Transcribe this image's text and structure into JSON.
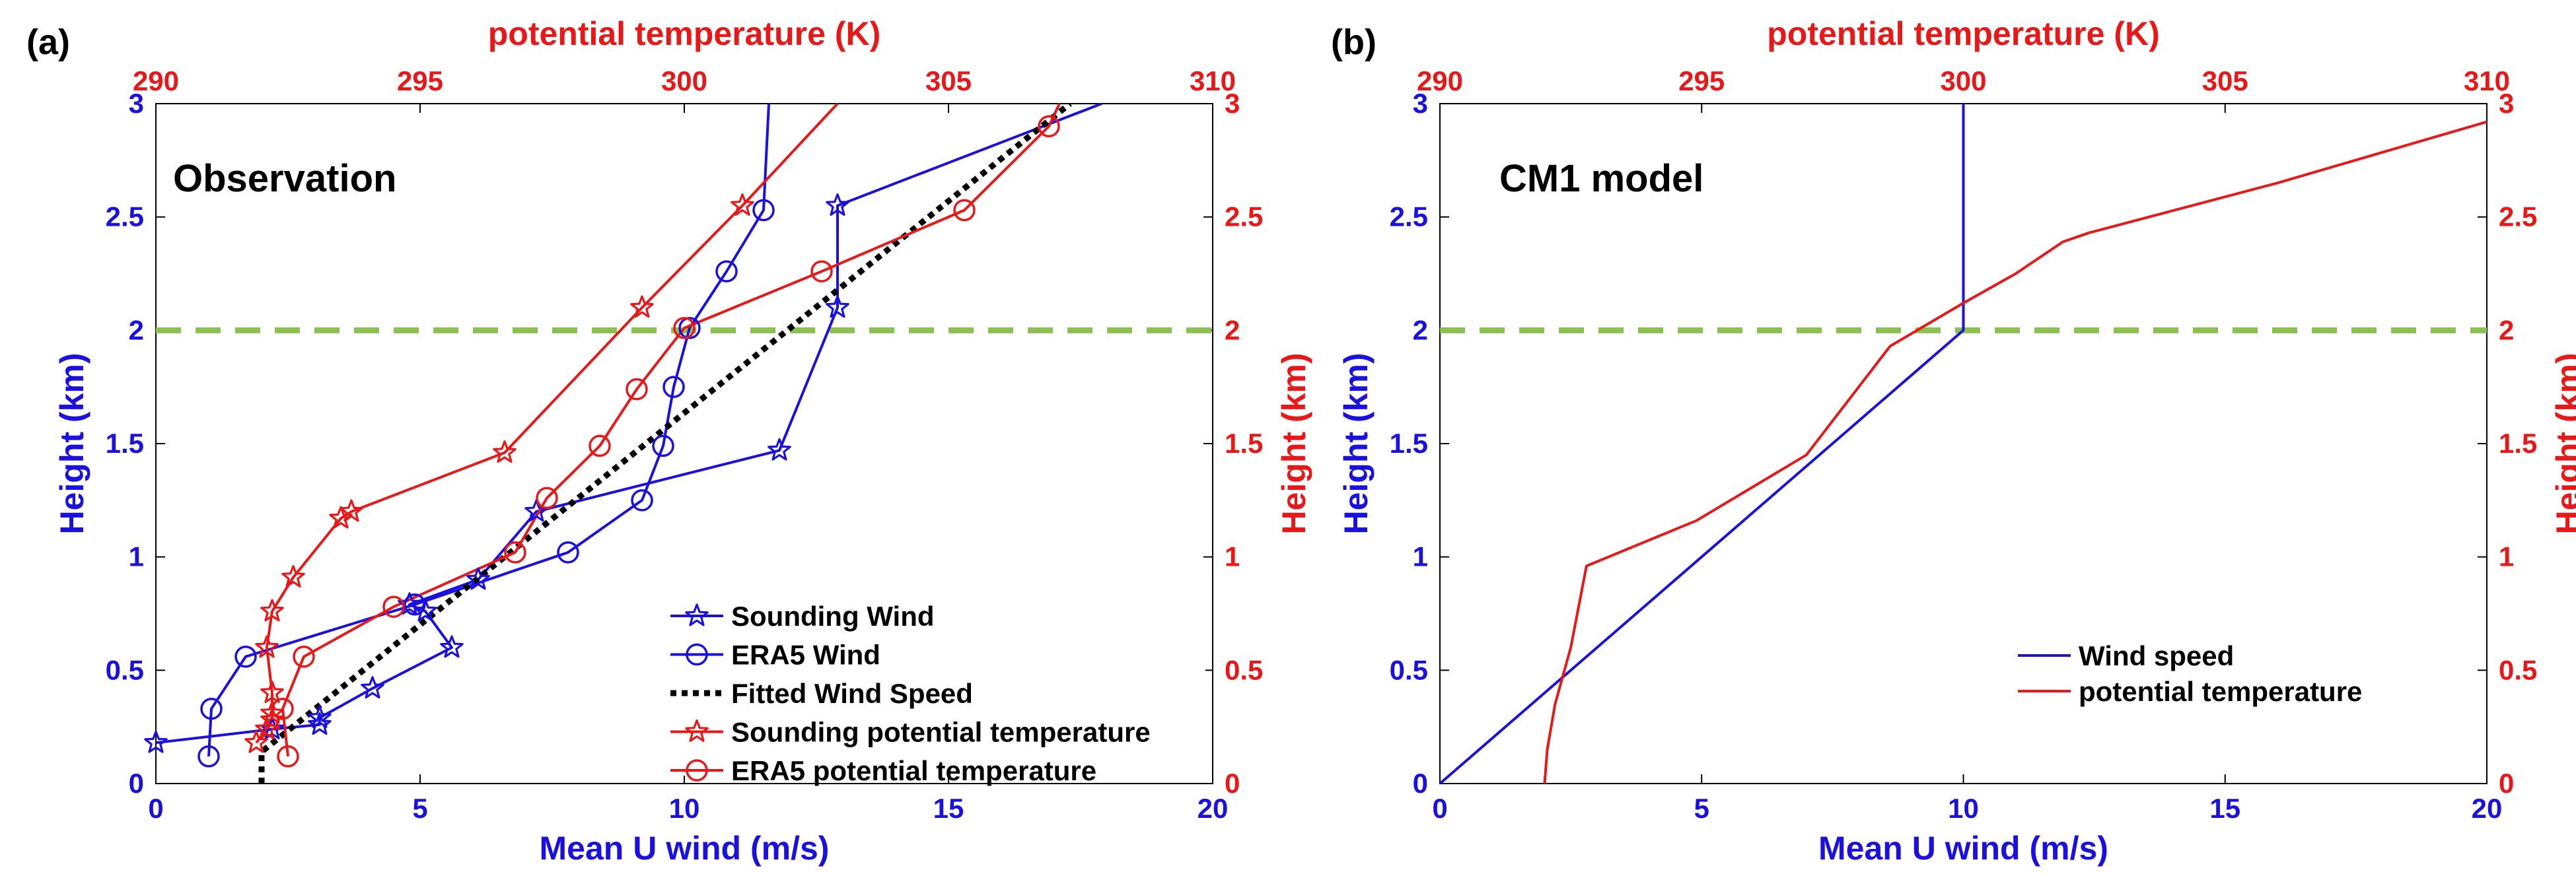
{
  "chart_data": [
    {
      "type": "line",
      "panel_label": "(a)",
      "title": "Observation",
      "xlabel": "Mean U wind (m/s)",
      "x2label": "potential temperature (K)",
      "ylabel": "Height (km)",
      "y2label": "Height (km)",
      "xlim": [
        0,
        20
      ],
      "x2lim": [
        290,
        310
      ],
      "ylim": [
        0,
        3
      ],
      "x_ticks": [
        "0",
        "5",
        "10",
        "15",
        "20"
      ],
      "x2_ticks": [
        "290",
        "295",
        "300",
        "305",
        "310"
      ],
      "y_ticks": [
        "0",
        "0.5",
        "1",
        "1.5",
        "2",
        "2.5",
        "3"
      ],
      "reference_line": {
        "y": 2,
        "color": "#8cc152",
        "style": "dashed"
      },
      "series": [
        {
          "name": "Sounding Wind",
          "axis": "bottom",
          "color": "#1a10e0",
          "marker": "star",
          "linestyle": "solid",
          "points": [
            [
              0,
              0.18
            ],
            [
              2.2,
              0.24
            ],
            [
              3.1,
              0.26
            ],
            [
              3.1,
              0.29
            ],
            [
              4.1,
              0.42
            ],
            [
              5.6,
              0.6
            ],
            [
              5.1,
              0.76
            ],
            [
              4.8,
              0.79
            ],
            [
              6.1,
              0.9
            ],
            [
              7.2,
              1.2
            ],
            [
              11.8,
              1.47
            ],
            [
              12.9,
              2.1
            ],
            [
              12.9,
              2.55
            ],
            [
              17.9,
              3.0
            ]
          ]
        },
        {
          "name": "ERA5 Wind",
          "axis": "bottom",
          "color": "#1a10e0",
          "marker": "circle",
          "linestyle": "solid",
          "points": [
            [
              1.0,
              0.12
            ],
            [
              1.05,
              0.33
            ],
            [
              1.7,
              0.56
            ],
            [
              4.9,
              0.79
            ],
            [
              7.8,
              1.02
            ],
            [
              9.2,
              1.25
            ],
            [
              9.6,
              1.49
            ],
            [
              9.8,
              1.75
            ],
            [
              10.1,
              2.01
            ],
            [
              10.8,
              2.26
            ],
            [
              11.5,
              2.53
            ],
            [
              11.6,
              3.0
            ]
          ]
        },
        {
          "name": "Fitted Wind Speed",
          "axis": "bottom",
          "color": "#000000",
          "marker": "none",
          "linestyle": "dotted",
          "points": [
            [
              2.0,
              0.0
            ],
            [
              2.0,
              0.14
            ],
            [
              17.3,
              3.0
            ]
          ]
        },
        {
          "name": "Sounding potential temperature",
          "axis": "top",
          "color": "#e81818",
          "marker": "star",
          "linestyle": "solid",
          "points": [
            [
              291.9,
              0.18
            ],
            [
              292.1,
              0.24
            ],
            [
              292.2,
              0.28
            ],
            [
              292.2,
              0.31
            ],
            [
              292.2,
              0.4
            ],
            [
              292.1,
              0.6
            ],
            [
              292.2,
              0.76
            ],
            [
              292.6,
              0.91
            ],
            [
              293.5,
              1.17
            ],
            [
              293.7,
              1.2
            ],
            [
              296.6,
              1.46
            ],
            [
              299.2,
              2.1
            ],
            [
              301.1,
              2.55
            ],
            [
              302.9,
              3.0
            ]
          ]
        },
        {
          "name": "ERA5 potential temperature",
          "axis": "top",
          "color": "#e81818",
          "marker": "circle",
          "linestyle": "solid",
          "points": [
            [
              292.5,
              0.12
            ],
            [
              292.4,
              0.33
            ],
            [
              292.8,
              0.56
            ],
            [
              294.5,
              0.78
            ],
            [
              296.8,
              1.02
            ],
            [
              297.4,
              1.26
            ],
            [
              298.4,
              1.49
            ],
            [
              299.1,
              1.74
            ],
            [
              300.0,
              2.01
            ],
            [
              302.6,
              2.26
            ],
            [
              305.3,
              2.53
            ],
            [
              306.9,
              2.9
            ],
            [
              307.1,
              3.0
            ]
          ]
        }
      ],
      "legend": {
        "position": "bottom-right",
        "entries": [
          "Sounding Wind",
          "ERA5 Wind",
          "Fitted Wind Speed",
          "Sounding potential temperature",
          "ERA5 potential temperature"
        ]
      }
    },
    {
      "type": "line",
      "panel_label": "(b)",
      "title": "CM1 model",
      "xlabel": "Mean U wind (m/s)",
      "x2label": "potential temperature (K)",
      "ylabel": "Height (km)",
      "y2label": "Height (km)",
      "xlim": [
        0,
        20
      ],
      "x2lim": [
        290,
        310
      ],
      "ylim": [
        0,
        3
      ],
      "x_ticks": [
        "0",
        "5",
        "10",
        "15",
        "20"
      ],
      "x2_ticks": [
        "290",
        "295",
        "300",
        "305",
        "310"
      ],
      "y_ticks": [
        "0",
        "0.5",
        "1",
        "1.5",
        "2",
        "2.5",
        "3"
      ],
      "reference_line": {
        "y": 2,
        "color": "#8cc152",
        "style": "dashed"
      },
      "series": [
        {
          "name": "Wind speed",
          "axis": "bottom",
          "color": "#1a10e0",
          "marker": "none",
          "linestyle": "solid",
          "points": [
            [
              0,
              0
            ],
            [
              10,
              2.0
            ],
            [
              10,
              3.0
            ]
          ]
        },
        {
          "name": "potential temperature",
          "axis": "top",
          "color": "#e81818",
          "marker": "none",
          "linestyle": "solid",
          "points": [
            [
              292.0,
              0.0
            ],
            [
              292.05,
              0.15
            ],
            [
              292.2,
              0.35
            ],
            [
              292.5,
              0.6
            ],
            [
              292.8,
              0.96
            ],
            [
              294.9,
              1.16
            ],
            [
              297.0,
              1.45
            ],
            [
              298.6,
              1.93
            ],
            [
              300.0,
              2.12
            ],
            [
              301.0,
              2.25
            ],
            [
              301.9,
              2.39
            ],
            [
              302.4,
              2.43
            ],
            [
              306.0,
              2.65
            ],
            [
              310.0,
              2.92
            ]
          ]
        }
      ],
      "legend": {
        "position": "bottom-right",
        "entries": [
          "Wind speed",
          "potential temperature"
        ]
      }
    }
  ]
}
